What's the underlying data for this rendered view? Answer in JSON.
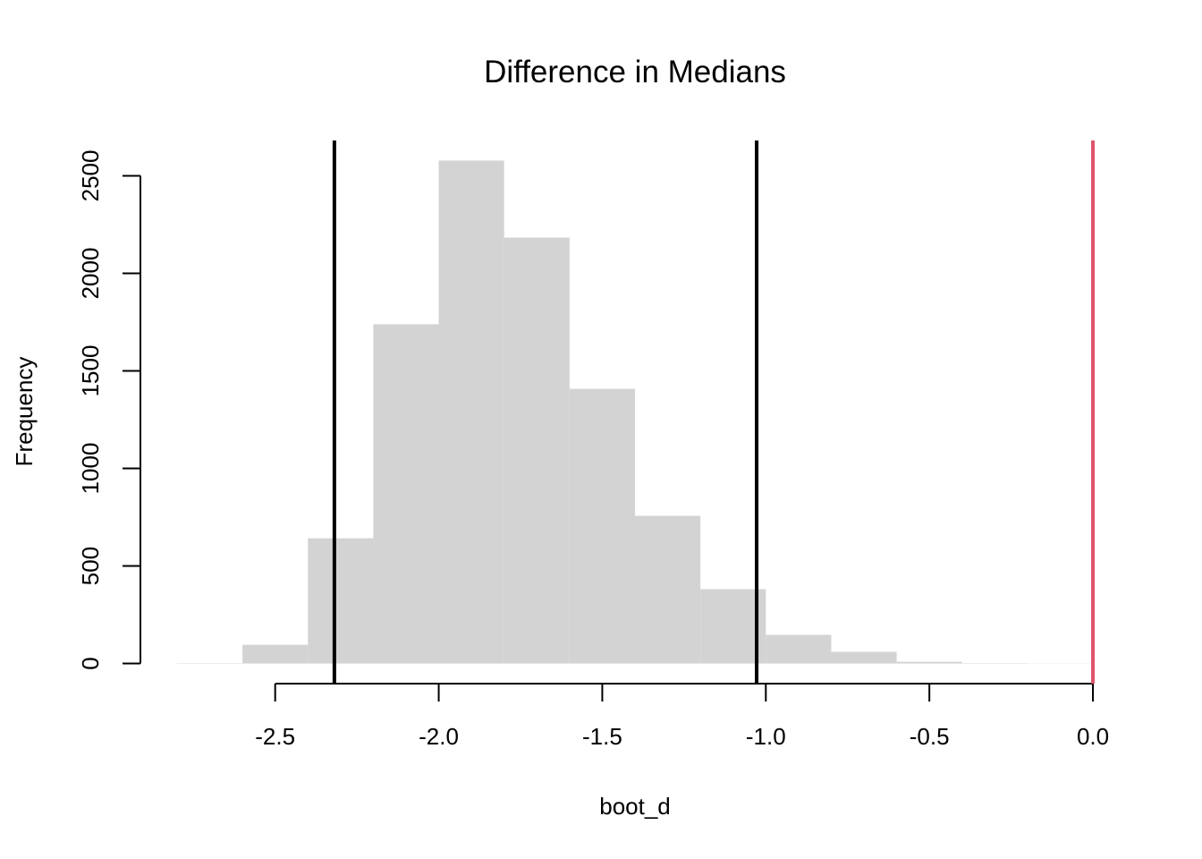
{
  "chart_data": {
    "type": "histogram",
    "title": "Difference in Medians",
    "x_label": "boot_d",
    "y_label": "Frequency",
    "bins": [
      -2.8,
      -2.6,
      -2.4,
      -2.2,
      -2.0,
      -1.8,
      -1.6,
      -1.4,
      -1.2,
      -1.0,
      -0.8,
      -0.6,
      -0.4,
      -0.2,
      0.0
    ],
    "values": [
      2,
      96,
      642,
      1739,
      2578,
      2183,
      1408,
      757,
      381,
      147,
      60,
      9,
      2,
      1
    ],
    "color": "#d3d3d3",
    "xlim": [
      -2.912,
      0.112
    ],
    "ylim": [
      -103,
      2681
    ],
    "xticks": [
      {
        "value": -2.5,
        "label": "-2.5"
      },
      {
        "value": -2.0,
        "label": "-2.0"
      },
      -1.5,
      {
        "value": -1.0,
        "label": "-1.0"
      },
      -0.5,
      {
        "value": 0.0,
        "label": "0.0"
      }
    ],
    "yticks": [
      0,
      500,
      1000,
      1500,
      2000,
      2500
    ],
    "vlines": [
      {
        "x": -2.319,
        "color": "#000000"
      },
      {
        "x": -1.028,
        "color": "#000000"
      },
      {
        "x": 0.0,
        "color": "#df536b"
      }
    ]
  }
}
